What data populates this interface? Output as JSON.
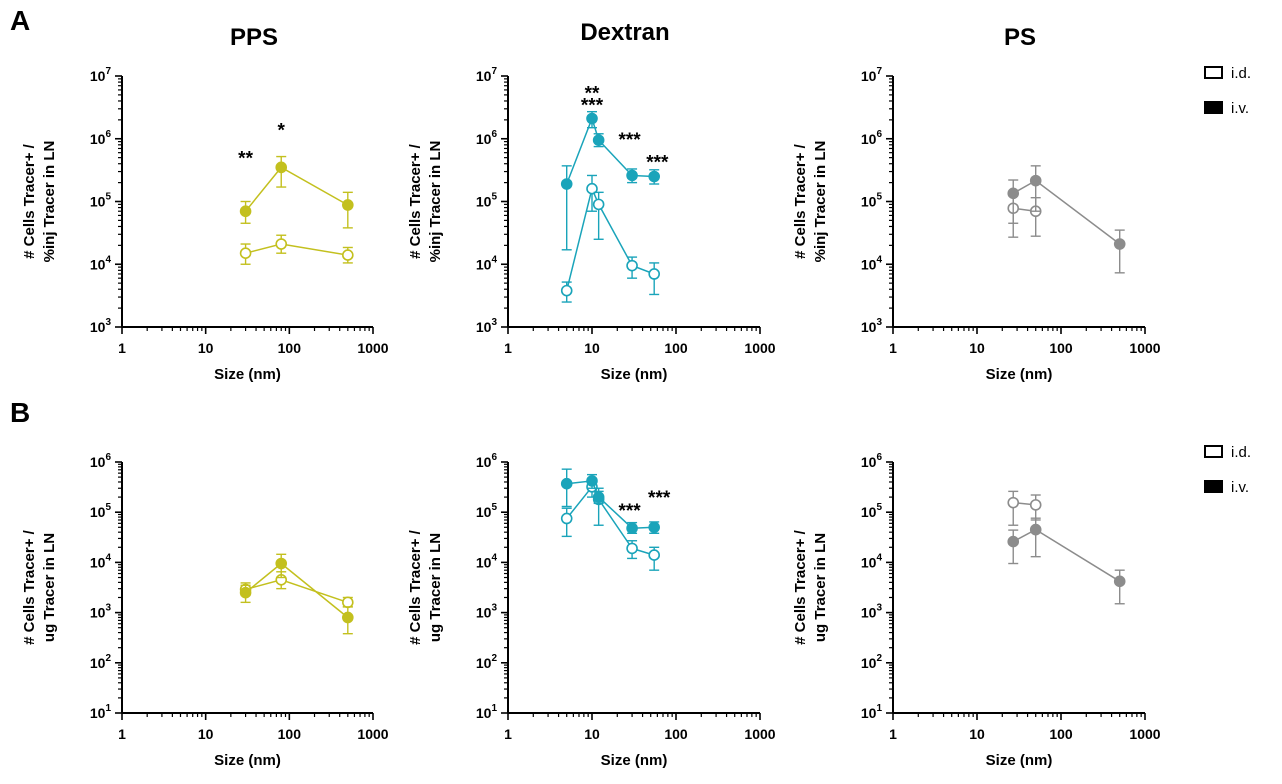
{
  "panel_letters": [
    "A",
    "B"
  ],
  "column_titles": [
    "PPS",
    "Dextran",
    "PS"
  ],
  "legend": {
    "entries": [
      {
        "label": "i.d.",
        "marker": "open"
      },
      {
        "label": "i.v.",
        "marker": "filled"
      }
    ]
  },
  "colors": {
    "PPS": "#c3c01e",
    "Dextran": "#1aa4ba",
    "PS": "#8c8c8c"
  },
  "chart_data": [
    {
      "type": "line",
      "panel": "A",
      "column": "PPS",
      "xscale": "log",
      "yscale": "log",
      "xlim": [
        1,
        1000
      ],
      "ylim": [
        1000,
        10000000
      ],
      "xlabel": "Size (nm)",
      "ylabel": [
        "# Cells Tracer+ /",
        "%inj Tracer in LN"
      ],
      "x_ticks": [
        1,
        10,
        100,
        1000
      ],
      "y_ticks": [
        {
          "base": "10",
          "exp": "3"
        },
        {
          "base": "10",
          "exp": "4"
        },
        {
          "base": "10",
          "exp": "5"
        },
        {
          "base": "10",
          "exp": "6"
        },
        {
          "base": "10",
          "exp": "7"
        }
      ],
      "series": [
        {
          "name": "i.d.",
          "marker": "open",
          "points": [
            {
              "x": 30,
              "y": 15000,
              "lo": 10000,
              "hi": 21000
            },
            {
              "x": 80,
              "y": 21000,
              "lo": 15000,
              "hi": 29000
            },
            {
              "x": 500,
              "y": 14000,
              "lo": 10500,
              "hi": 18500
            }
          ]
        },
        {
          "name": "i.v.",
          "marker": "filled",
          "points": [
            {
              "x": 30,
              "y": 70000,
              "lo": 45000,
              "hi": 100000
            },
            {
              "x": 80,
              "y": 350000,
              "lo": 170000,
              "hi": 520000
            },
            {
              "x": 500,
              "y": 88000,
              "lo": 38000,
              "hi": 140000
            }
          ]
        }
      ],
      "annotations": [
        {
          "text": "**",
          "x": 30,
          "y": 500000
        },
        {
          "text": "*",
          "x": 80,
          "y": 1400000
        }
      ]
    },
    {
      "type": "line",
      "panel": "A",
      "column": "Dextran",
      "xscale": "log",
      "yscale": "log",
      "xlim": [
        1,
        1000
      ],
      "ylim": [
        1000,
        10000000
      ],
      "xlabel": "Size (nm)",
      "ylabel": [
        "# Cells Tracer+ /",
        "%inj Tracer in LN"
      ],
      "x_ticks": [
        1,
        10,
        100,
        1000
      ],
      "y_ticks": [
        {
          "base": "10",
          "exp": "3"
        },
        {
          "base": "10",
          "exp": "4"
        },
        {
          "base": "10",
          "exp": "5"
        },
        {
          "base": "10",
          "exp": "6"
        },
        {
          "base": "10",
          "exp": "7"
        }
      ],
      "series": [
        {
          "name": "i.d.",
          "marker": "open",
          "points": [
            {
              "x": 5,
              "y": 3800,
              "lo": 2500,
              "hi": 5200
            },
            {
              "x": 10,
              "y": 160000,
              "lo": 70000,
              "hi": 260000
            },
            {
              "x": 12,
              "y": 90000,
              "lo": 25000,
              "hi": 140000
            },
            {
              "x": 30,
              "y": 9500,
              "lo": 6000,
              "hi": 13000
            },
            {
              "x": 55,
              "y": 7000,
              "lo": 3300,
              "hi": 10500
            }
          ]
        },
        {
          "name": "i.v.",
          "marker": "filled",
          "points": [
            {
              "x": 5,
              "y": 190000,
              "lo": 17000,
              "hi": 370000
            },
            {
              "x": 10,
              "y": 2100000,
              "lo": 1500000,
              "hi": 2700000
            },
            {
              "x": 12,
              "y": 950000,
              "lo": 750000,
              "hi": 1200000
            },
            {
              "x": 30,
              "y": 260000,
              "lo": 200000,
              "hi": 330000
            },
            {
              "x": 55,
              "y": 250000,
              "lo": 190000,
              "hi": 320000
            }
          ]
        }
      ],
      "annotations": [
        {
          "text": "**",
          "x": 10,
          "y": 5500000
        },
        {
          "text": "***",
          "x": 10,
          "y": 3500000
        },
        {
          "text": "***",
          "x": 28,
          "y": 1000000
        },
        {
          "text": "***",
          "x": 60,
          "y": 430000
        }
      ]
    },
    {
      "type": "line",
      "panel": "A",
      "column": "PS",
      "xscale": "log",
      "yscale": "log",
      "xlim": [
        1,
        1000
      ],
      "ylim": [
        1000,
        10000000
      ],
      "xlabel": "Size (nm)",
      "ylabel": [
        "# Cells Tracer+ /",
        "%inj Tracer in LN"
      ],
      "x_ticks": [
        1,
        10,
        100,
        1000
      ],
      "y_ticks": [
        {
          "base": "10",
          "exp": "3"
        },
        {
          "base": "10",
          "exp": "4"
        },
        {
          "base": "10",
          "exp": "5"
        },
        {
          "base": "10",
          "exp": "6"
        },
        {
          "base": "10",
          "exp": "7"
        }
      ],
      "series": [
        {
          "name": "i.d.",
          "marker": "open",
          "points": [
            {
              "x": 27,
              "y": 78000,
              "lo": 27000,
              "hi": 130000
            },
            {
              "x": 50,
              "y": 70000,
              "lo": 28000,
              "hi": 115000
            }
          ]
        },
        {
          "name": "i.v.",
          "marker": "filled",
          "points": [
            {
              "x": 27,
              "y": 135000,
              "lo": 45000,
              "hi": 220000
            },
            {
              "x": 50,
              "y": 215000,
              "lo": 70000,
              "hi": 370000
            },
            {
              "x": 500,
              "y": 21000,
              "lo": 7300,
              "hi": 35000
            }
          ]
        }
      ],
      "annotations": []
    },
    {
      "type": "line",
      "panel": "B",
      "column": "PPS",
      "xscale": "log",
      "yscale": "log",
      "xlim": [
        1,
        1000
      ],
      "ylim": [
        10,
        1000000
      ],
      "xlabel": "Size (nm)",
      "ylabel": [
        "# Cells Tracer+ /",
        "ug Tracer in LN"
      ],
      "x_ticks": [
        1,
        10,
        100,
        1000
      ],
      "y_ticks": [
        {
          "base": "10",
          "exp": "1"
        },
        {
          "base": "10",
          "exp": "2"
        },
        {
          "base": "10",
          "exp": "3"
        },
        {
          "base": "10",
          "exp": "4"
        },
        {
          "base": "10",
          "exp": "5"
        },
        {
          "base": "10",
          "exp": "6"
        }
      ],
      "series": [
        {
          "name": "i.d.",
          "marker": "open",
          "points": [
            {
              "x": 30,
              "y": 2900,
              "lo": 2200,
              "hi": 3900
            },
            {
              "x": 80,
              "y": 4500,
              "lo": 3000,
              "hi": 6500
            },
            {
              "x": 500,
              "y": 1600,
              "lo": 1300,
              "hi": 2000
            }
          ]
        },
        {
          "name": "i.v.",
          "marker": "filled",
          "points": [
            {
              "x": 30,
              "y": 2500,
              "lo": 1600,
              "hi": 3500
            },
            {
              "x": 80,
              "y": 9500,
              "lo": 5000,
              "hi": 14500
            },
            {
              "x": 500,
              "y": 800,
              "lo": 380,
              "hi": 1300
            }
          ]
        }
      ],
      "annotations": []
    },
    {
      "type": "line",
      "panel": "B",
      "column": "Dextran",
      "xscale": "log",
      "yscale": "log",
      "xlim": [
        1,
        1000
      ],
      "ylim": [
        10,
        1000000
      ],
      "xlabel": "Size (nm)",
      "ylabel": [
        "# Cells Tracer+ /",
        "ug Tracer in LN"
      ],
      "x_ticks": [
        1,
        10,
        100,
        1000
      ],
      "y_ticks": [
        {
          "base": "10",
          "exp": "1"
        },
        {
          "base": "10",
          "exp": "2"
        },
        {
          "base": "10",
          "exp": "3"
        },
        {
          "base": "10",
          "exp": "4"
        },
        {
          "base": "10",
          "exp": "5"
        },
        {
          "base": "10",
          "exp": "6"
        }
      ],
      "series": [
        {
          "name": "i.d.",
          "marker": "open",
          "points": [
            {
              "x": 5,
              "y": 75000,
              "lo": 33000,
              "hi": 120000
            },
            {
              "x": 10,
              "y": 320000,
              "lo": 200000,
              "hi": 450000
            },
            {
              "x": 12,
              "y": 180000,
              "lo": 55000,
              "hi": 300000
            },
            {
              "x": 30,
              "y": 19000,
              "lo": 12000,
              "hi": 27000
            },
            {
              "x": 55,
              "y": 14000,
              "lo": 7000,
              "hi": 20000
            }
          ]
        },
        {
          "name": "i.v.",
          "marker": "filled",
          "points": [
            {
              "x": 5,
              "y": 370000,
              "lo": 130000,
              "hi": 720000
            },
            {
              "x": 10,
              "y": 420000,
              "lo": 300000,
              "hi": 560000
            },
            {
              "x": 12,
              "y": 200000,
              "lo": 150000,
              "hi": 260000
            },
            {
              "x": 30,
              "y": 48000,
              "lo": 38000,
              "hi": 62000
            },
            {
              "x": 55,
              "y": 50000,
              "lo": 38000,
              "hi": 64000
            }
          ]
        }
      ],
      "annotations": [
        {
          "text": "***",
          "x": 28,
          "y": 110000
        },
        {
          "text": "***",
          "x": 63,
          "y": 200000
        }
      ]
    },
    {
      "type": "line",
      "panel": "B",
      "column": "PS",
      "xscale": "log",
      "yscale": "log",
      "xlim": [
        1,
        1000
      ],
      "ylim": [
        10,
        1000000
      ],
      "xlabel": "Size (nm)",
      "ylabel": [
        "# Cells Tracer+ /",
        "ug Tracer in LN"
      ],
      "x_ticks": [
        1,
        10,
        100,
        1000
      ],
      "y_ticks": [
        {
          "base": "10",
          "exp": "1"
        },
        {
          "base": "10",
          "exp": "2"
        },
        {
          "base": "10",
          "exp": "3"
        },
        {
          "base": "10",
          "exp": "4"
        },
        {
          "base": "10",
          "exp": "5"
        },
        {
          "base": "10",
          "exp": "6"
        }
      ],
      "series": [
        {
          "name": "i.d.",
          "marker": "open",
          "points": [
            {
              "x": 27,
              "y": 155000,
              "lo": 55000,
              "hi": 260000
            },
            {
              "x": 50,
              "y": 140000,
              "lo": 70000,
              "hi": 220000
            }
          ]
        },
        {
          "name": "i.v.",
          "marker": "filled",
          "points": [
            {
              "x": 27,
              "y": 26000,
              "lo": 9500,
              "hi": 44000
            },
            {
              "x": 50,
              "y": 45000,
              "lo": 13000,
              "hi": 76000
            },
            {
              "x": 500,
              "y": 4200,
              "lo": 1500,
              "hi": 7000
            }
          ]
        }
      ],
      "annotations": []
    }
  ]
}
